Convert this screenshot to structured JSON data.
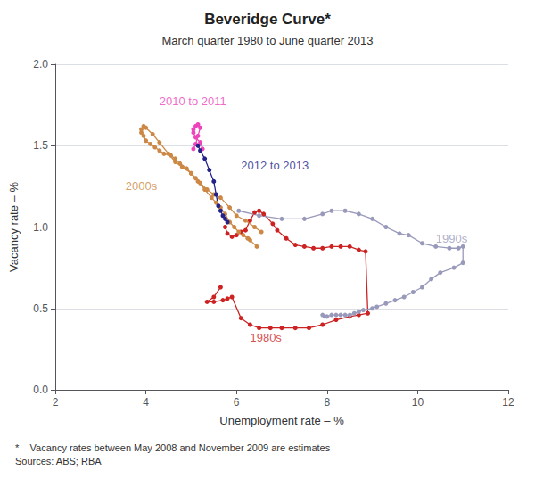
{
  "chart_data": {
    "type": "line",
    "title": "Beveridge Curve*",
    "subtitle": "March quarter 1980 to June quarter 2013",
    "xlabel": "Unemployment rate – %",
    "ylabel": "Vacancy rate – %",
    "footnote": "*    Vacancy rates between May 2008 and November 2009 are estimates\nSources: ABS; RBA",
    "xlim": [
      2,
      12
    ],
    "ylim": [
      0,
      2
    ],
    "xticks": [
      2,
      4,
      6,
      8,
      10,
      12
    ],
    "yticks": [
      {
        "value": 0,
        "label": "0.0"
      },
      0.5,
      {
        "value": 1,
        "label": "1.0"
      },
      1.5,
      {
        "value": 2,
        "label": "2.0"
      }
    ],
    "grid": "y",
    "marker": "circle",
    "annotations": [
      {
        "text": "1980s",
        "x": 6.3,
        "y": 0.32,
        "color": "#cc2222"
      },
      {
        "text": "1990s",
        "x": 10.4,
        "y": 0.93,
        "color": "#9999bb"
      },
      {
        "text": "2000s",
        "x": 3.55,
        "y": 1.25,
        "color": "#cc8844"
      },
      {
        "text": "2010 to 2011",
        "x": 4.3,
        "y": 1.77,
        "color": "#ee44bb"
      },
      {
        "text": "2012 to 2013",
        "x": 6.1,
        "y": 1.38,
        "color": "#222288"
      }
    ],
    "series": [
      {
        "name": "1980s",
        "color": "#cc2222",
        "x": [
          5.65,
          5.5,
          5.35,
          5.5,
          5.7,
          5.8,
          5.9,
          6.1,
          6.3,
          6.5,
          6.75,
          7.0,
          7.3,
          7.6,
          7.9,
          8.2,
          8.5,
          8.7,
          8.9,
          8.85,
          8.7,
          8.5,
          8.3,
          8.1,
          7.9,
          7.7,
          7.5,
          7.3,
          7.1,
          6.9,
          6.8,
          6.6,
          6.5,
          6.4,
          6.3,
          6.2,
          6.1,
          6.0,
          5.9,
          5.8,
          5.75
        ],
        "values": [
          0.63,
          0.57,
          0.54,
          0.54,
          0.55,
          0.56,
          0.57,
          0.44,
          0.4,
          0.38,
          0.38,
          0.38,
          0.38,
          0.38,
          0.4,
          0.43,
          0.45,
          0.46,
          0.47,
          0.85,
          0.86,
          0.88,
          0.88,
          0.88,
          0.87,
          0.87,
          0.88,
          0.89,
          0.93,
          0.98,
          1.02,
          1.08,
          1.1,
          1.09,
          1.04,
          0.98,
          0.97,
          0.95,
          0.94,
          0.96,
          1.0
        ]
      },
      {
        "name": "1990s",
        "color": "#9999bb",
        "x": [
          6.05,
          6.5,
          7.0,
          7.5,
          7.9,
          8.1,
          8.4,
          8.7,
          9.0,
          9.3,
          9.6,
          9.8,
          10.1,
          10.4,
          10.7,
          10.9,
          11.0,
          11.0,
          10.8,
          10.5,
          10.3,
          10.1,
          9.9,
          9.7,
          9.5,
          9.3,
          9.1,
          9.0,
          8.8,
          8.7,
          8.6,
          8.5,
          8.4,
          8.3,
          8.2,
          8.1,
          8.0,
          7.95,
          7.9
        ],
        "values": [
          1.1,
          1.07,
          1.05,
          1.05,
          1.08,
          1.1,
          1.1,
          1.08,
          1.05,
          1.0,
          0.96,
          0.95,
          0.9,
          0.88,
          0.87,
          0.87,
          0.88,
          0.78,
          0.75,
          0.72,
          0.68,
          0.63,
          0.6,
          0.57,
          0.55,
          0.53,
          0.51,
          0.5,
          0.49,
          0.48,
          0.47,
          0.46,
          0.46,
          0.46,
          0.46,
          0.46,
          0.45,
          0.45,
          0.46
        ]
      },
      {
        "name": "2000s",
        "color": "#cc8844",
        "x": [
          6.55,
          6.4,
          6.2,
          6.0,
          5.85,
          5.65,
          5.5,
          5.35,
          5.2,
          5.1,
          5.0,
          4.9,
          4.75,
          4.65,
          4.55,
          4.4,
          4.3,
          4.2,
          4.1,
          4.0,
          3.95,
          3.9,
          3.9,
          3.95,
          4.0,
          4.15,
          4.3,
          4.5,
          4.65,
          4.8,
          5.0,
          5.15,
          5.3,
          5.45,
          5.55,
          5.65,
          5.75,
          5.85,
          5.95,
          6.05,
          6.15,
          6.25,
          6.3,
          6.45
        ],
        "values": [
          0.97,
          1.0,
          1.04,
          1.07,
          1.12,
          1.18,
          1.2,
          1.23,
          1.27,
          1.3,
          1.33,
          1.36,
          1.39,
          1.42,
          1.44,
          1.45,
          1.47,
          1.49,
          1.51,
          1.53,
          1.56,
          1.58,
          1.6,
          1.62,
          1.61,
          1.57,
          1.52,
          1.45,
          1.4,
          1.37,
          1.33,
          1.28,
          1.23,
          1.18,
          1.15,
          1.12,
          1.08,
          1.03,
          1.0,
          0.97,
          0.95,
          0.93,
          0.92,
          0.88
        ]
      },
      {
        "name": "2010 to 2011",
        "color": "#ee44bb",
        "x": [
          5.25,
          5.2,
          5.1,
          5.05,
          5.05,
          5.1,
          5.15,
          5.2,
          5.15,
          5.1,
          5.05
        ],
        "values": [
          1.48,
          1.52,
          1.55,
          1.58,
          1.6,
          1.62,
          1.63,
          1.61,
          1.56,
          1.51,
          1.48
        ]
      },
      {
        "name": "2012 to 2013",
        "color": "#222288",
        "x": [
          5.15,
          5.2,
          5.3,
          5.4,
          5.5,
          5.55,
          5.6,
          5.65,
          5.7,
          5.75,
          5.8
        ],
        "values": [
          1.5,
          1.47,
          1.42,
          1.35,
          1.28,
          1.2,
          1.13,
          1.1,
          1.07,
          1.05,
          1.03
        ]
      }
    ]
  }
}
